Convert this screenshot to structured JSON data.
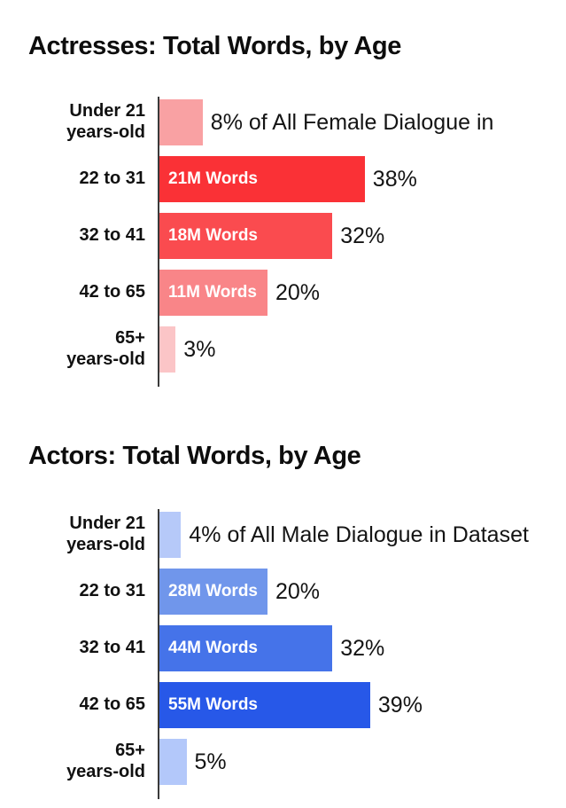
{
  "chart_data": [
    {
      "type": "bar",
      "orientation": "horizontal",
      "title": "Actresses: Total Words, by Age",
      "categories": [
        "Under 21\nyears-old",
        "22 to 31",
        "32 to 41",
        "42 to 65",
        "65+\nyears-old"
      ],
      "values_pct": [
        8,
        38,
        32,
        20,
        3
      ],
      "words_millions": [
        null,
        21,
        18,
        11,
        null
      ],
      "bar_value_labels": [
        "",
        "21M Words",
        "18M Words",
        "11M Words",
        ""
      ],
      "outside_labels": [
        "8% of All Female Dialogue in",
        "38%",
        "32%",
        "20%",
        "3%"
      ],
      "bar_colors": [
        "#F9A1A3",
        "#FA3136",
        "#FA4B4F",
        "#F98588",
        "#FBC5C7"
      ],
      "axis_color": "#3A3A3A",
      "xlim_pct": [
        0,
        45
      ],
      "legend": "none",
      "grid": false
    },
    {
      "type": "bar",
      "orientation": "horizontal",
      "title": "Actors: Total Words, by Age",
      "categories": [
        "Under 21\nyears-old",
        "22 to 31",
        "32 to 41",
        "42 to 65",
        "65+\nyears-old"
      ],
      "values_pct": [
        4,
        20,
        32,
        39,
        5
      ],
      "words_millions": [
        null,
        28,
        44,
        55,
        null
      ],
      "bar_value_labels": [
        "",
        "28M Words",
        "44M Words",
        "55M Words",
        ""
      ],
      "outside_labels": [
        "4% of All Male Dialogue in Dataset",
        "20%",
        "32%",
        "39%",
        "5%"
      ],
      "bar_colors": [
        "#B6C9F9",
        "#7096EB",
        "#4573E9",
        "#2758E8",
        "#B3C8FA"
      ],
      "axis_color": "#3A3A3A",
      "xlim_pct": [
        0,
        45
      ],
      "legend": "none",
      "grid": false
    }
  ],
  "palette": {
    "background": "#FFFFFF",
    "text": "#111111",
    "female_accent": "#FA3136",
    "male_accent": "#2758E8"
  }
}
